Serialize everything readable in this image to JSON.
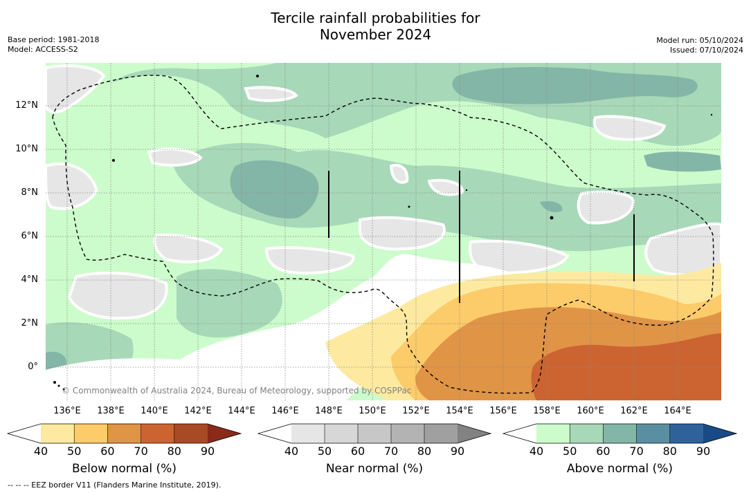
{
  "header": {
    "title_line1": "Tercile rainfall probabilities for",
    "title_line2": "November 2024",
    "base_period": "Base period: 1981-2018",
    "model": "Model: ACCESS-S2",
    "model_run": "Model run: 05/10/2024",
    "issued": "Issued: 07/10/2024"
  },
  "map": {
    "lon_ticks": [
      "136°E",
      "138°E",
      "140°E",
      "142°E",
      "144°E",
      "146°E",
      "148°E",
      "150°E",
      "152°E",
      "154°E",
      "156°E",
      "158°E",
      "160°E",
      "162°E",
      "164°E"
    ],
    "lat_ticks": [
      "12°N",
      "10°N",
      "8°N",
      "6°N",
      "4°N",
      "2°N",
      "0°"
    ],
    "copyright": "© Commonwealth of Australia 2024, Bureau of Meteorology, supported by COSPPac"
  },
  "colorbars": [
    {
      "label": "Below normal (%)",
      "ticks": [
        "40",
        "50",
        "60",
        "70",
        "80",
        "90"
      ],
      "colors": [
        "#ffffff",
        "#fdeaa0",
        "#fccb6a",
        "#e09446",
        "#cc6432",
        "#a94a26",
        "#8a2a1a"
      ]
    },
    {
      "label": "Near normal (%)",
      "ticks": [
        "40",
        "50",
        "60",
        "70",
        "80",
        "90"
      ],
      "colors": [
        "#ffffff",
        "#e6e6e6",
        "#d7d7d7",
        "#c7c7c7",
        "#b3b3b3",
        "#a0a0a0",
        "#828282"
      ]
    },
    {
      "label": "Above normal (%)",
      "ticks": [
        "40",
        "50",
        "60",
        "70",
        "80",
        "90"
      ],
      "colors": [
        "#ffffff",
        "#ccfccb",
        "#a7d8b8",
        "#84b6a7",
        "#5a8fa3",
        "#2f629b",
        "#184a85"
      ]
    }
  ],
  "footer": {
    "eez_note": "--  --  -- EEZ border V11 (Flanders Marine Institute, 2019)."
  }
}
